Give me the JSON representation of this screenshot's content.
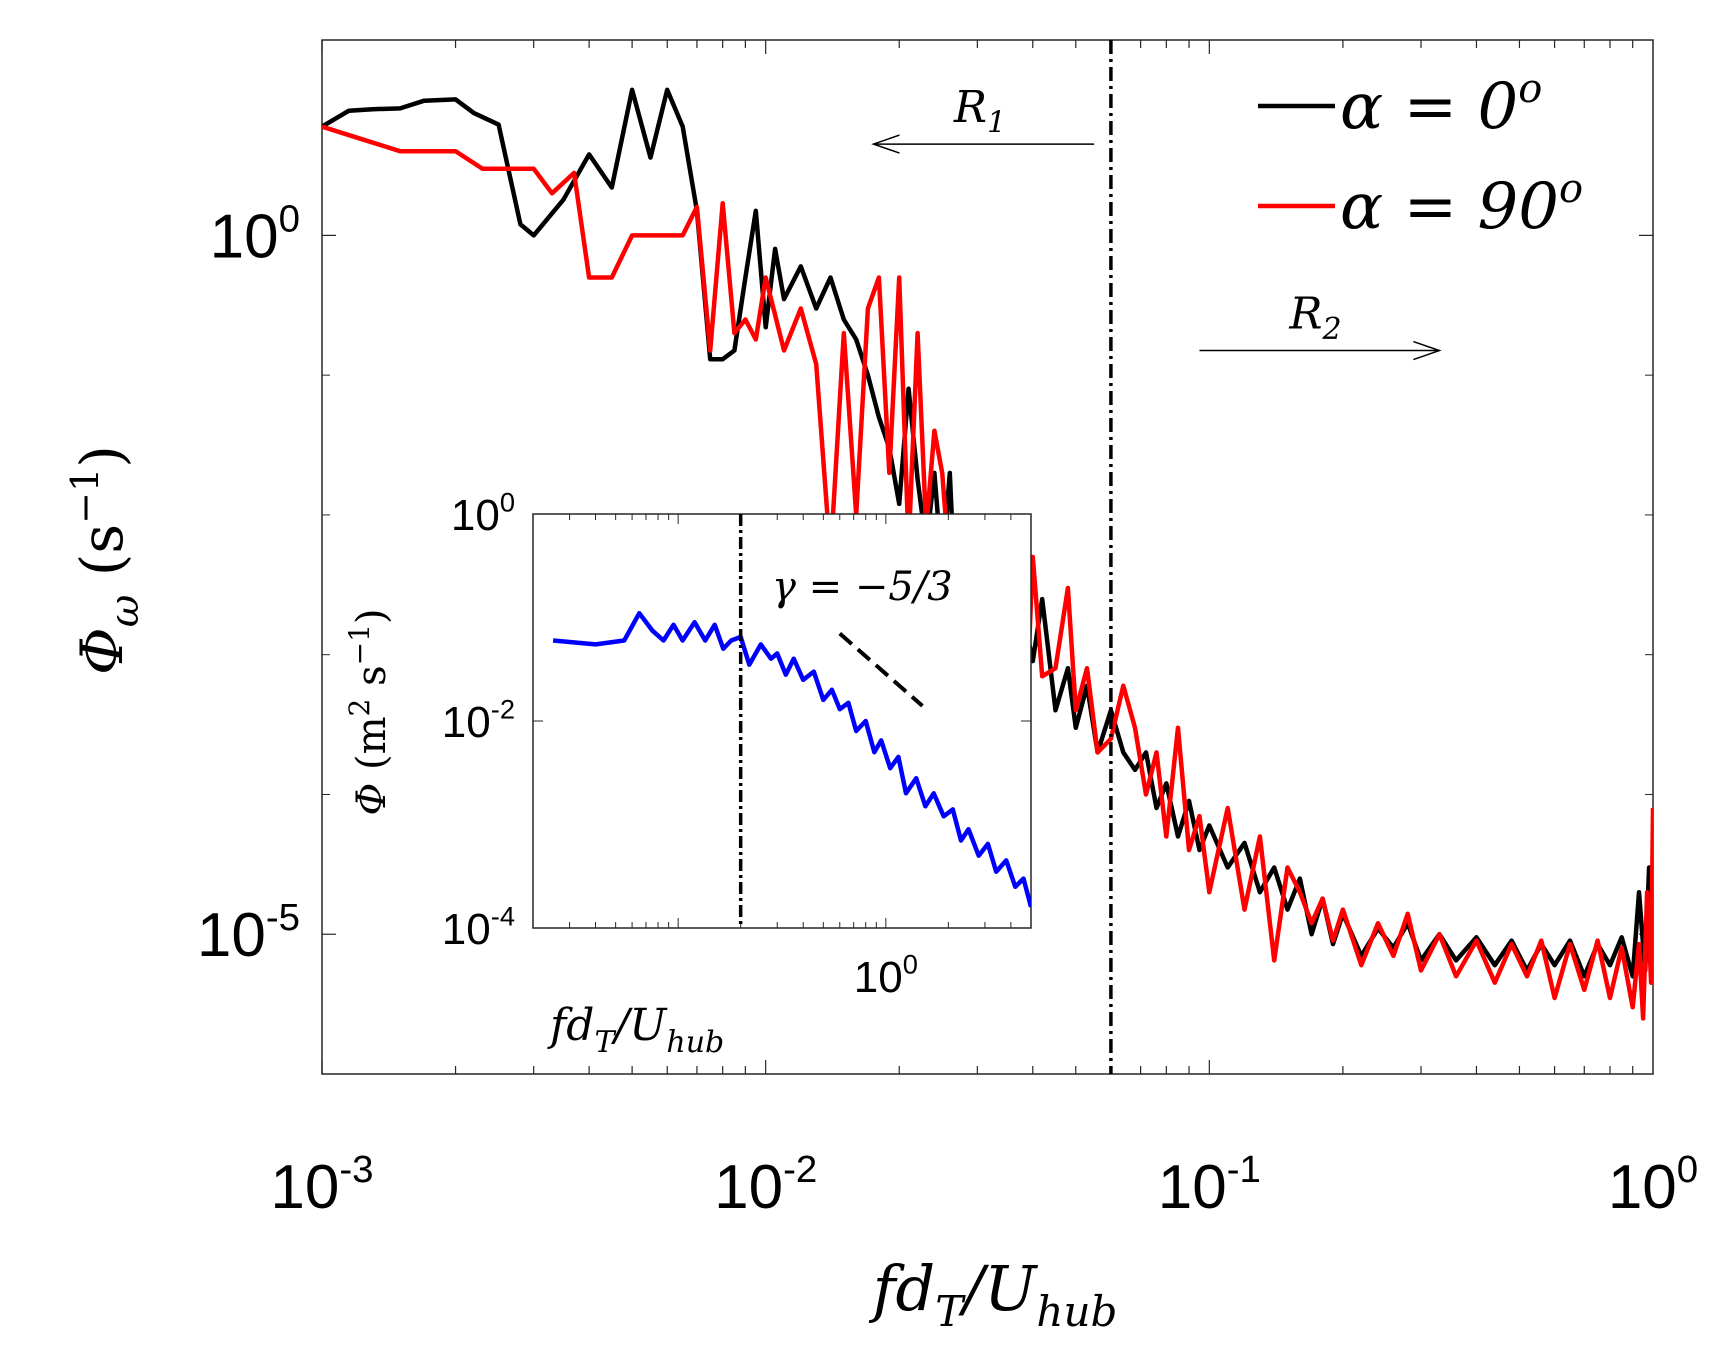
{
  "chart_data": [
    {
      "id": "main",
      "type": "line",
      "xscale": "log",
      "yscale": "log",
      "xlim": [
        0.001,
        1.0
      ],
      "ylim": [
        1e-06,
        25
      ],
      "xlabel": "fd_T/U_hub",
      "ylabel": "Φ_ω (s^-1)",
      "xticks": [
        {
          "value": 0.001,
          "base": "10",
          "exp": "-3"
        },
        {
          "value": 0.01,
          "base": "10",
          "exp": "-2"
        },
        {
          "value": 0.1,
          "base": "10",
          "exp": "-1"
        },
        {
          "value": 1.0,
          "base": "10",
          "exp": "0"
        }
      ],
      "yticks": [
        {
          "value": 1.0,
          "base": "10",
          "exp": "0"
        },
        {
          "value": 1e-05,
          "base": "10",
          "exp": "-5"
        }
      ],
      "legend": {
        "position": "top-right",
        "entries": [
          {
            "label": "α = 0",
            "sup": "o",
            "color": "#000000"
          },
          {
            "label": "α = 90",
            "sup": "o",
            "color": "#ff0000"
          }
        ]
      },
      "vertical_line": {
        "x": 0.06,
        "style": "dash-dot",
        "color": "#000000"
      },
      "annotations": [
        {
          "text": "R",
          "sub": "1",
          "arrow": "left",
          "x_from": 0.055,
          "x_to": 0.0175,
          "y": 4.5
        },
        {
          "text": "R",
          "sub": "2",
          "arrow": "right",
          "x_from": 0.095,
          "x_to": 0.33,
          "y": 0.15
        }
      ],
      "series": [
        {
          "name": "α = 0°",
          "color": "#000000",
          "x": [
            0.001,
            0.00115,
            0.0013,
            0.0015,
            0.0017,
            0.002,
            0.0022,
            0.0025,
            0.0028,
            0.003,
            0.0035,
            0.004,
            0.0045,
            0.005,
            0.0055,
            0.006,
            0.0065,
            0.007,
            0.0075,
            0.008,
            0.0085,
            0.009,
            0.0095,
            0.01,
            0.0105,
            0.011,
            0.012,
            0.013,
            0.014,
            0.015,
            0.016,
            0.017,
            0.018,
            0.019,
            0.02,
            0.021,
            0.022,
            0.023,
            0.024,
            0.025,
            0.026,
            0.027,
            0.028,
            0.03,
            0.032,
            0.034,
            0.036,
            0.038,
            0.04,
            0.042,
            0.045,
            0.048,
            0.05,
            0.053,
            0.056,
            0.06,
            0.064,
            0.068,
            0.072,
            0.076,
            0.08,
            0.085,
            0.09,
            0.095,
            0.1,
            0.11,
            0.12,
            0.13,
            0.14,
            0.15,
            0.16,
            0.17,
            0.18,
            0.19,
            0.2,
            0.22,
            0.24,
            0.26,
            0.28,
            0.3,
            0.33,
            0.36,
            0.4,
            0.44,
            0.48,
            0.52,
            0.56,
            0.6,
            0.65,
            0.7,
            0.75,
            0.8,
            0.85,
            0.9,
            0.93,
            0.96,
            0.98,
            1.0
          ],
          "y": [
            6.0,
            7.8,
            8.0,
            8.1,
            9.2,
            9.4,
            7.5,
            6.2,
            1.2,
            1.0,
            1.8,
            3.8,
            2.2,
            11.0,
            3.6,
            11.0,
            6.0,
            1.5,
            0.13,
            0.13,
            0.15,
            0.5,
            1.5,
            0.22,
            0.8,
            0.35,
            0.6,
            0.3,
            0.5,
            0.25,
            0.18,
            0.1,
            0.05,
            0.03,
            0.012,
            0.08,
            0.018,
            0.006,
            0.02,
            0.004,
            0.02,
            0.0015,
            0.006,
            0.005,
            0.0012,
            0.004,
            0.0008,
            0.002,
            0.0009,
            0.0025,
            0.0004,
            0.0008,
            0.0003,
            0.0006,
            0.0002,
            0.0004,
            0.0002,
            0.00015,
            0.0002,
            8e-05,
            0.00012,
            5e-05,
            9e-05,
            4e-05,
            6e-05,
            3e-05,
            4.5e-05,
            2e-05,
            3e-05,
            1.5e-05,
            2.5e-05,
            1e-05,
            1.8e-05,
            8.5e-06,
            1.4e-05,
            7e-06,
            1.1e-05,
            8e-06,
            1.2e-05,
            6.5e-06,
            1e-05,
            6.5e-06,
            9.5e-06,
            6e-06,
            9e-06,
            5.5e-06,
            8.5e-06,
            6e-06,
            9e-06,
            5e-06,
            8.5e-06,
            6e-06,
            9.5e-06,
            5e-06,
            2e-05,
            5.5e-06,
            3e-05,
            6e-06
          ]
        },
        {
          "name": "α = 90°",
          "color": "#ff0000",
          "x": [
            0.001,
            0.0012,
            0.0015,
            0.0018,
            0.002,
            0.0023,
            0.0026,
            0.003,
            0.0033,
            0.0037,
            0.004,
            0.0045,
            0.005,
            0.0055,
            0.006,
            0.0065,
            0.007,
            0.0075,
            0.008,
            0.0085,
            0.009,
            0.0095,
            0.01,
            0.011,
            0.012,
            0.013,
            0.014,
            0.015,
            0.016,
            0.017,
            0.018,
            0.019,
            0.02,
            0.021,
            0.022,
            0.023,
            0.024,
            0.025,
            0.026,
            0.027,
            0.028,
            0.03,
            0.032,
            0.034,
            0.036,
            0.038,
            0.04,
            0.042,
            0.045,
            0.048,
            0.05,
            0.053,
            0.056,
            0.06,
            0.064,
            0.068,
            0.072,
            0.076,
            0.08,
            0.085,
            0.09,
            0.095,
            0.1,
            0.11,
            0.12,
            0.13,
            0.14,
            0.15,
            0.16,
            0.17,
            0.18,
            0.19,
            0.2,
            0.22,
            0.24,
            0.26,
            0.28,
            0.3,
            0.33,
            0.36,
            0.4,
            0.44,
            0.48,
            0.52,
            0.56,
            0.6,
            0.65,
            0.7,
            0.75,
            0.8,
            0.85,
            0.9,
            0.93,
            0.95,
            0.97,
            0.99,
            1.0
          ],
          "y": [
            6.0,
            5.0,
            4.0,
            4.0,
            4.0,
            3.0,
            3.0,
            3.0,
            2.0,
            2.8,
            0.5,
            0.5,
            1.0,
            1.0,
            1.0,
            1.0,
            1.6,
            0.15,
            1.7,
            0.2,
            0.25,
            0.18,
            0.5,
            0.15,
            0.3,
            0.12,
            0.005,
            0.2,
            0.01,
            0.3,
            0.5,
            0.02,
            0.5,
            0.006,
            0.2,
            0.008,
            0.04,
            0.02,
            0.004,
            0.008,
            0.005,
            0.0012,
            0.008,
            0.0008,
            0.003,
            0.0001,
            0.005,
            0.0007,
            0.0008,
            0.003,
            0.0004,
            0.0008,
            0.0002,
            0.00025,
            0.0006,
            0.0003,
            0.0001,
            0.0002,
            5e-05,
            0.0003,
            4e-05,
            7e-05,
            2e-05,
            8e-05,
            1.5e-05,
            5e-05,
            6.5e-06,
            3e-05,
            2e-05,
            1.2e-05,
            1.8e-05,
            9e-06,
            1.5e-05,
            6e-06,
            1.2e-05,
            7e-06,
            1.4e-05,
            5.5e-06,
            1e-05,
            5e-06,
            9e-06,
            4.5e-06,
            8.5e-06,
            5e-06,
            9e-06,
            3.5e-06,
            8.5e-06,
            4e-06,
            9e-06,
            3.5e-06,
            8e-06,
            3e-06,
            8.5e-06,
            2.5e-06,
            2e-05,
            4.5e-06,
            8e-05
          ]
        }
      ]
    },
    {
      "id": "inset",
      "type": "line",
      "xscale": "log",
      "yscale": "log",
      "xlim": [
        0.02,
        5.0
      ],
      "ylim": [
        0.0001,
        1.0
      ],
      "xlabel": "fd_T/U_hub",
      "ylabel": "Φ (m^2 s^-1)",
      "xticks": [
        {
          "value": 1.0,
          "base": "10",
          "exp": "0"
        }
      ],
      "yticks": [
        {
          "value": 1.0,
          "base": "10",
          "exp": "0"
        },
        {
          "value": 0.01,
          "base": "10",
          "exp": "-2"
        },
        {
          "value": 0.0001,
          "base": "10",
          "exp": "-4"
        }
      ],
      "vertical_line": {
        "x": 0.2,
        "style": "dash-dot",
        "color": "#000000"
      },
      "reference_line": {
        "label": "γ = −5/3",
        "slope": -1.6667,
        "x": [
          0.6,
          1.5
        ],
        "y": [
          0.07,
          0.014
        ],
        "style": "dashed",
        "color": "#000000"
      },
      "series": [
        {
          "name": "",
          "color": "#0000ff",
          "x": [
            0.025,
            0.04,
            0.055,
            0.065,
            0.075,
            0.085,
            0.095,
            0.105,
            0.12,
            0.135,
            0.15,
            0.165,
            0.18,
            0.2,
            0.22,
            0.25,
            0.28,
            0.3,
            0.33,
            0.36,
            0.4,
            0.45,
            0.5,
            0.55,
            0.6,
            0.66,
            0.72,
            0.8,
            0.88,
            0.95,
            1.05,
            1.15,
            1.25,
            1.4,
            1.55,
            1.7,
            1.9,
            2.1,
            2.3,
            2.5,
            2.8,
            3.1,
            3.4,
            3.8,
            4.2,
            4.6,
            5.0
          ],
          "y": [
            0.06,
            0.055,
            0.06,
            0.11,
            0.075,
            0.06,
            0.085,
            0.06,
            0.09,
            0.06,
            0.085,
            0.05,
            0.06,
            0.065,
            0.035,
            0.055,
            0.04,
            0.045,
            0.028,
            0.04,
            0.025,
            0.03,
            0.016,
            0.02,
            0.013,
            0.015,
            0.008,
            0.01,
            0.005,
            0.0065,
            0.0035,
            0.0045,
            0.002,
            0.0028,
            0.0015,
            0.002,
            0.0012,
            0.0014,
            0.0007,
            0.0009,
            0.0005,
            0.00065,
            0.00035,
            0.00045,
            0.00025,
            0.0003,
            0.00016
          ]
        }
      ]
    }
  ]
}
